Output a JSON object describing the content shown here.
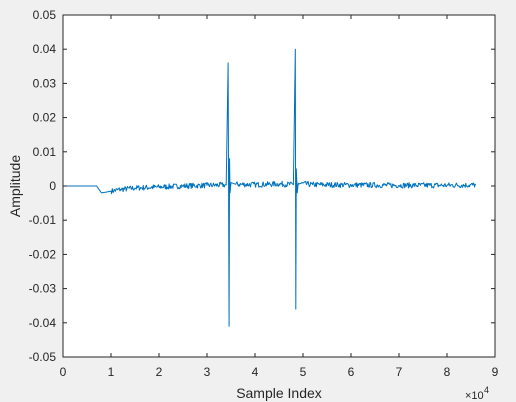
{
  "chart_data": {
    "type": "line",
    "xlabel": "Sample Index",
    "ylabel": "Amplitude",
    "x_exponent_label": "×10",
    "x_exponent": "4",
    "xlim": [
      0,
      90000
    ],
    "ylim": [
      -0.05,
      0.05
    ],
    "x_tick_labels": [
      "0",
      "1",
      "2",
      "3",
      "4",
      "5",
      "6",
      "7",
      "8",
      "9"
    ],
    "y_tick_labels": [
      "0.05",
      "0.04",
      "0.03",
      "0.02",
      "0.01",
      "0",
      "-0.01",
      "-0.02",
      "-0.03",
      "-0.04",
      "-0.05"
    ],
    "grid": false,
    "colors": {
      "line": "#0072bd",
      "axes": "#262626",
      "background": "#ffffff",
      "figure": "#f0f0f0"
    },
    "series": [
      {
        "x": [
          0,
          5000,
          7000,
          7500,
          8000,
          9000,
          10000,
          12000,
          15000,
          20000,
          25000,
          30000,
          34000,
          34400,
          34600,
          34700,
          34800,
          35000,
          36000,
          40000,
          45000,
          48000,
          48400,
          48500,
          48600,
          48800,
          49000,
          52000,
          60000,
          70000,
          80000,
          86000
        ],
        "y": [
          0,
          0,
          0,
          -0.001,
          -0.002,
          -0.0018,
          -0.0015,
          -0.001,
          -0.0006,
          -0.0003,
          0.0,
          0.0002,
          0.0003,
          0.036,
          -0.041,
          0.008,
          -0.002,
          0.001,
          0.0005,
          0.0004,
          0.0006,
          0.0004,
          0.04,
          -0.036,
          0.005,
          -0.002,
          0.0008,
          0.0004,
          0.0003,
          0.0002,
          0.0002,
          0.0003
        ]
      }
    ]
  }
}
